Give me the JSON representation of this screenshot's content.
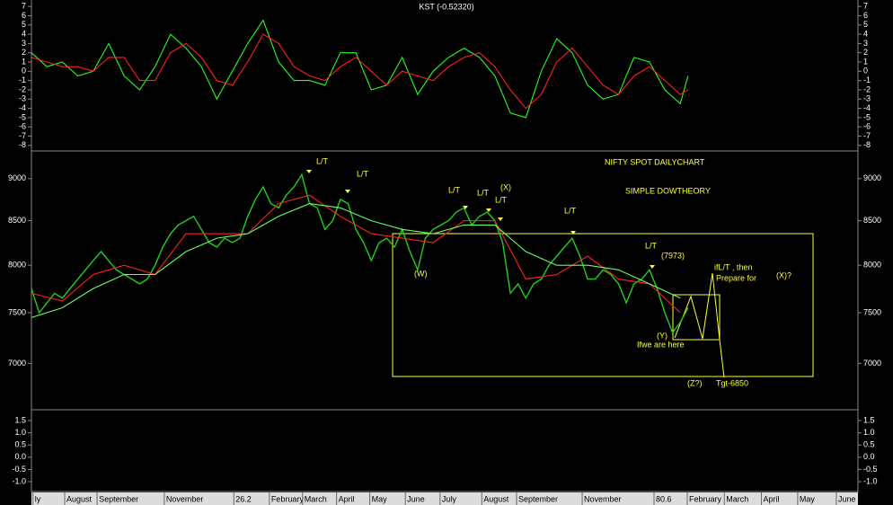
{
  "chart_data": [
    {
      "type": "line",
      "title": "KST (-0.52320)",
      "x": [
        0,
        2,
        4,
        6,
        8,
        10,
        12,
        14,
        16,
        18,
        20,
        22,
        24,
        26,
        28,
        30,
        32,
        34,
        36,
        38,
        40,
        42,
        44,
        46,
        48,
        50,
        52,
        54,
        56,
        58,
        60,
        62,
        64,
        66,
        68,
        70,
        72,
        74,
        76,
        78,
        80,
        82,
        84,
        85
      ],
      "xlim": [
        0,
        107
      ],
      "series": [
        {
          "color": "#22ff22",
          "values": [
            2,
            0.5,
            1,
            -0.5,
            0,
            3,
            -0.5,
            -2,
            0.5,
            4,
            2.5,
            0.5,
            -3,
            0,
            3,
            5.5,
            1,
            -1,
            -1,
            -1.5,
            2,
            2,
            -2,
            -1.5,
            1.5,
            -2.5,
            0,
            1.5,
            2.5,
            1.5,
            -0.5,
            -4.5,
            -5,
            0,
            3.5,
            2,
            -1.5,
            -3,
            -2.5,
            1.5,
            1,
            -2,
            -3.5,
            -0.5
          ]
        },
        {
          "color": "#ff2020",
          "values": [
            1.5,
            1,
            0.5,
            0.5,
            0,
            1.5,
            1.5,
            -1,
            -1,
            2,
            3,
            1.5,
            -1,
            -1.5,
            1,
            4,
            3,
            0.5,
            -0.5,
            -1,
            0.5,
            1.5,
            0,
            -1.5,
            0,
            -0.5,
            -1,
            0.5,
            1.5,
            2,
            0.5,
            -2,
            -4,
            -2.5,
            1,
            2.5,
            0.5,
            -1.5,
            -2.5,
            -0.5,
            0.5,
            -1,
            -2.5,
            -2
          ]
        }
      ],
      "ylim": [
        -8.6,
        7.5
      ],
      "yticks": [
        -8,
        -7,
        -6,
        -5,
        -4,
        -3,
        -2,
        -1,
        0,
        1,
        2,
        3,
        4,
        5,
        6,
        7
      ]
    },
    {
      "type": "line",
      "x": [
        0,
        1,
        2,
        3,
        4,
        5,
        6,
        7,
        8,
        9,
        10,
        11,
        12,
        13,
        14,
        15,
        16,
        17,
        18,
        19,
        20,
        21,
        22,
        23,
        24,
        25,
        26,
        27,
        28,
        29,
        30,
        31,
        32,
        33,
        34,
        35,
        36,
        37,
        38,
        39,
        40,
        41,
        42,
        43,
        44,
        45,
        46,
        47,
        48,
        49,
        50,
        51,
        52,
        53,
        54,
        55,
        56,
        57,
        58,
        59,
        60,
        61,
        62,
        63,
        64,
        65,
        66,
        67,
        68,
        69,
        70,
        71,
        72,
        73,
        74,
        75,
        76,
        77,
        78,
        79,
        80,
        81,
        82,
        83,
        84,
        85
      ],
      "xlim": [
        0,
        107
      ],
      "log_scale": true,
      "series": [
        {
          "color": "#1fd01f",
          "values": [
            7750,
            7500,
            7600,
            7700,
            7650,
            7750,
            7850,
            7950,
            8050,
            8150,
            8050,
            7950,
            7900,
            7850,
            7800,
            7850,
            8000,
            8200,
            8350,
            8450,
            8500,
            8550,
            8400,
            8250,
            8200,
            8300,
            8250,
            8300,
            8550,
            8750,
            8900,
            8700,
            8650,
            8800,
            8900,
            9050,
            8700,
            8650,
            8400,
            8500,
            8750,
            8700,
            8400,
            8250,
            8050,
            8250,
            8300,
            8200,
            8400,
            8150,
            7950,
            8300,
            8400,
            8450,
            8500,
            8600,
            8650,
            8450,
            8550,
            8600,
            8500,
            8250,
            7700,
            7800,
            7650,
            7800,
            7850,
            8000,
            8100,
            8200,
            8300,
            8100,
            7850,
            7850,
            7950,
            7900,
            7800,
            7600,
            7800,
            7850,
            7950,
            7750,
            7500,
            7300,
            7400,
            7550
          ]
        },
        {
          "color": "#ff2020",
          "x": [
            0,
            4,
            8,
            12,
            16,
            20,
            24,
            28,
            32,
            36,
            40,
            44,
            48,
            52,
            56,
            60,
            64,
            68,
            72,
            76,
            80,
            84
          ],
          "values": [
            7700,
            7620,
            7900,
            8000,
            7900,
            8350,
            8350,
            8350,
            8700,
            8800,
            8550,
            8350,
            8300,
            8250,
            8500,
            8500,
            7850,
            7900,
            8100,
            7850,
            7800,
            7500
          ]
        },
        {
          "color": "#66ff66",
          "x": [
            0,
            4,
            8,
            12,
            16,
            20,
            24,
            28,
            32,
            36,
            40,
            44,
            48,
            52,
            56,
            60,
            64,
            68,
            72,
            76,
            80,
            84
          ],
          "values": [
            7450,
            7550,
            7750,
            7900,
            7900,
            8150,
            8300,
            8350,
            8550,
            8700,
            8650,
            8500,
            8400,
            8350,
            8450,
            8450,
            8150,
            8000,
            8000,
            7950,
            7800,
            7650
          ]
        }
      ],
      "ylim": [
        6580,
        9380
      ],
      "yticks": [
        7000,
        7500,
        8000,
        8500,
        9000
      ],
      "annotations": [
        "NIFTY SPOT DAILYCHART",
        "SIMPLE DOWTHEORY",
        "L/T",
        "L/T",
        "L/T",
        "L/T",
        "(X)",
        "L/T",
        "L/T",
        "L/T",
        "(7973)",
        "(W)",
        "(Y)",
        "Ifwe are here",
        "ifL/T , then",
        "Prepare for",
        "(X)?",
        "(Z?)",
        "Tgt-6850"
      ]
    },
    {
      "type": "line",
      "xlim": [
        0,
        107
      ],
      "ylim": [
        -1.33,
        1.87
      ],
      "yticks": [
        {
          "value": -1,
          "label": "-1.0"
        },
        -0.5,
        {
          "value": 0,
          "label": "0.0"
        },
        0.5,
        {
          "value": 1,
          "label": "1.0"
        },
        1.5
      ],
      "xticks": [
        {
          "value": 0.2,
          "label": "ly"
        },
        {
          "value": 4.3,
          "label": "August"
        },
        {
          "value": 8.5,
          "label": "September"
        },
        {
          "value": 17.2,
          "label": "November"
        },
        26.2,
        {
          "value": 30.8,
          "label": "February"
        },
        {
          "value": 35.1,
          "label": "March"
        },
        {
          "value": 39.5,
          "label": "April"
        },
        {
          "value": 43.8,
          "label": "May"
        },
        {
          "value": 48.4,
          "label": "June"
        },
        {
          "value": 52.9,
          "label": "July"
        },
        {
          "value": 58.3,
          "label": "August"
        },
        {
          "value": 62.8,
          "label": "September"
        },
        {
          "value": 71.3,
          "label": "November"
        },
        80.6,
        {
          "value": 84.9,
          "label": "February"
        },
        {
          "value": 89.7,
          "label": "March"
        },
        {
          "value": 94.5,
          "label": "April"
        },
        {
          "value": 99.2,
          "label": "May"
        },
        {
          "value": 104.2,
          "label": "June"
        }
      ]
    }
  ]
}
